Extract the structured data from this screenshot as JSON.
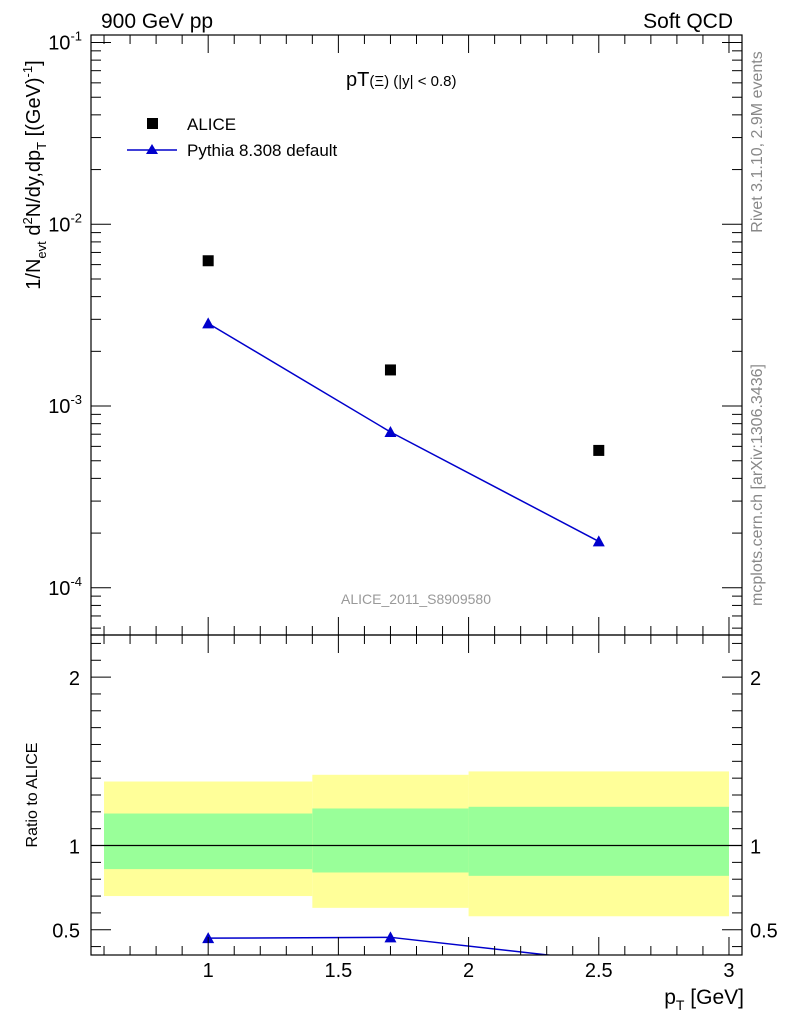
{
  "header": {
    "left": "900 GeV pp",
    "right": "Soft QCD"
  },
  "side_labels": {
    "rivet": "Rivet 3.1.10,  2.9M events",
    "mcplots": "mcplots.cern.ch [arXiv:1306.3436]"
  },
  "watermark": "ALICE_2011_S8909580",
  "chart_data": [
    {
      "type": "scatter",
      "title": "pT(Ξ) (|y| < 0.8)",
      "title_main": "pT",
      "title_paren": "(Ξ)",
      "title_rest": " (|y| < 0.8)",
      "ylabel": "1/N_evt d²N/dy,dp_T [(GeV)⁻¹]",
      "yscale": "log",
      "ylim": [
        5.5e-05,
        0.11
      ],
      "xlim": [
        0.55,
        3.05
      ],
      "y_ticks": [
        {
          "value": 0.1,
          "label": "10",
          "exp": "-1"
        },
        {
          "value": 0.01,
          "label": "10",
          "exp": "-2"
        },
        {
          "value": 0.001,
          "label": "10",
          "exp": "-3"
        },
        {
          "value": 0.0001,
          "label": "10",
          "exp": "-4"
        }
      ],
      "legend_position": "top-left",
      "series": [
        {
          "name": "ALICE",
          "marker": "square",
          "color": "#000000",
          "x": [
            1.0,
            1.7,
            2.5
          ],
          "y": [
            0.0063,
            0.00158,
            0.00057
          ]
        },
        {
          "name": "Pythia 8.308 default",
          "marker": "triangle",
          "color": "#0000cc",
          "x": [
            1.0,
            1.7,
            2.5
          ],
          "y": [
            0.00285,
            0.00072,
            0.00018
          ]
        }
      ]
    },
    {
      "type": "line",
      "ylabel": "Ratio to ALICE",
      "xlabel": "p_T [GeV]",
      "ylim": [
        0.35,
        2.25
      ],
      "xlim": [
        0.55,
        3.05
      ],
      "x_ticks": [
        {
          "value": 1,
          "label": "1"
        },
        {
          "value": 1.5,
          "label": "1.5"
        },
        {
          "value": 2,
          "label": "2"
        },
        {
          "value": 2.5,
          "label": "2.5"
        },
        {
          "value": 3,
          "label": "3"
        }
      ],
      "y_ticks": [
        {
          "value": 0.5,
          "label": "0.5"
        },
        {
          "value": 1,
          "label": "1"
        },
        {
          "value": 2,
          "label": "2"
        }
      ],
      "bands": [
        {
          "x0": 0.6,
          "x1": 1.4,
          "yellow": [
            0.7,
            1.38
          ],
          "green": [
            0.86,
            1.19
          ]
        },
        {
          "x0": 1.4,
          "x1": 2.0,
          "yellow": [
            0.63,
            1.42
          ],
          "green": [
            0.84,
            1.22
          ]
        },
        {
          "x0": 2.0,
          "x1": 3.0,
          "yellow": [
            0.58,
            1.44
          ],
          "green": [
            0.82,
            1.23
          ]
        }
      ],
      "reference": 1.0,
      "series": [
        {
          "name": "Pythia 8.308 default",
          "color": "#0000cc",
          "x": [
            1.0,
            1.7,
            2.5
          ],
          "y": [
            0.45,
            0.455,
            0.316
          ]
        }
      ]
    }
  ]
}
